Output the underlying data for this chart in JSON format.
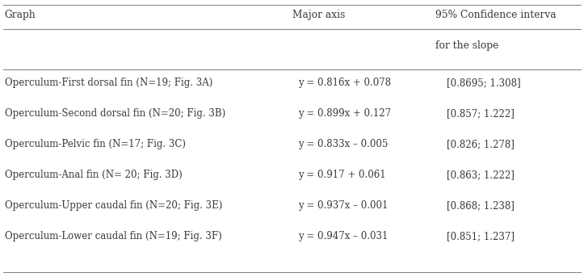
{
  "col1_header": "Graph",
  "col2_header": "Major axis",
  "col3_header": "95% Confidence interva",
  "col3_header2": "for the slope",
  "rows": [
    {
      "graph": "Operculum-First dorsal fin (N=19; Fig. 3A)",
      "major_axis": "y = 0.816x + 0.078",
      "ci": "[0.8695; 1.308]"
    },
    {
      "graph": "Operculum-Second dorsal fin (N=20; Fig. 3B)",
      "major_axis": "y = 0.899x + 0.127",
      "ci": "[0.857; 1.222]"
    },
    {
      "graph": "Operculum-Pelvic fin (N=17; Fig. 3C)",
      "major_axis": "y = 0.833x – 0.005",
      "ci": "[0.826; 1.278]"
    },
    {
      "graph": "Operculum-Anal fin (N= 20; Fig. 3D)",
      "major_axis": "y = 0.917 + 0.061",
      "ci": "[0.863; 1.222]"
    },
    {
      "graph": "Operculum-Upper caudal fin (N=20; Fig. 3E)",
      "major_axis": "y = 0.937x – 0.001",
      "ci": "[0.868; 1.238]"
    },
    {
      "graph": "Operculum-Lower caudal fin (N=19; Fig. 3F)",
      "major_axis": "y = 0.947x – 0.031",
      "ci": "[0.851; 1.237]"
    }
  ],
  "bg_color": "#ffffff",
  "text_color": "#3a3a3a",
  "font_size": 8.5,
  "header_font_size": 8.8,
  "fig_width": 7.23,
  "fig_height": 3.43,
  "dpi": 100,
  "col1_fx": 0.008,
  "col2_fx": 0.5,
  "col3_fx": 0.745,
  "line_color": "#888888",
  "line_lw": 0.8
}
